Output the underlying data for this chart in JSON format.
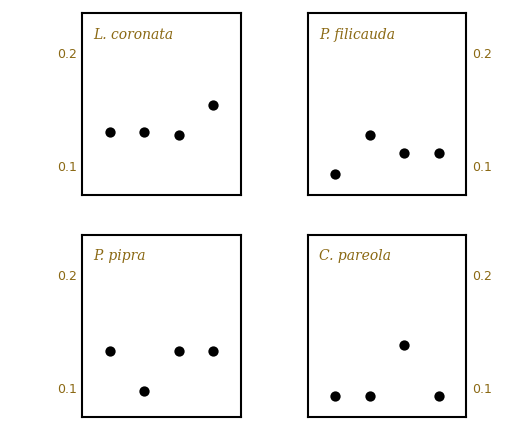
{
  "subplots": [
    {
      "label": "L. coronata",
      "x": [
        1,
        2,
        3,
        4
      ],
      "y": [
        0.13,
        0.13,
        0.128,
        0.154
      ],
      "xlim": [
        0.2,
        4.8
      ],
      "ylim": [
        0.075,
        0.235
      ]
    },
    {
      "label": "P. filicauda",
      "x": [
        1,
        2,
        3,
        4
      ],
      "y": [
        0.093,
        0.128,
        0.112,
        0.112
      ],
      "xlim": [
        0.2,
        4.8
      ],
      "ylim": [
        0.075,
        0.235
      ]
    },
    {
      "label": "P. pipra",
      "x": [
        1,
        2,
        3,
        4
      ],
      "y": [
        0.133,
        0.098,
        0.133,
        0.133
      ],
      "xlim": [
        0.2,
        4.8
      ],
      "ylim": [
        0.075,
        0.235
      ]
    },
    {
      "label": "C. pareola",
      "x": [
        1,
        2,
        3,
        4
      ],
      "y": [
        0.093,
        0.093,
        0.138,
        0.093
      ],
      "xlim": [
        0.2,
        4.8
      ],
      "ylim": [
        0.075,
        0.235
      ]
    }
  ],
  "dot_color": "#000000",
  "dot_size": 55,
  "label_color": "#8B6914",
  "label_fontsize": 10,
  "tick_fontsize": 9,
  "yticks": [
    0.1,
    0.2
  ],
  "background_color": "#ffffff"
}
